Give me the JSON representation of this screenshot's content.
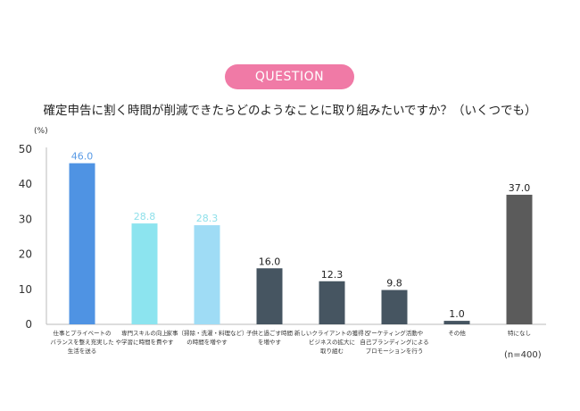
{
  "header": {
    "badge": "QUESTION",
    "question": "確定申告に割く時間が削減できたらどのようなことに取り組みたいですか？（いくつでも）",
    "sample_size": "(n=400)"
  },
  "chart_data": {
    "type": "bar",
    "title": "",
    "xlabel": "",
    "ylabel": "(%)",
    "ylim": [
      0,
      50
    ],
    "yticks": [
      0,
      10,
      20,
      30,
      40,
      50
    ],
    "grid": false,
    "legend": "none",
    "categories": [
      [
        "仕事とプライベートの",
        "バランスを整え充実した",
        "生活を送る"
      ],
      [
        "専門スキルの向上",
        "や学習に時間を費やす"
      ],
      [
        "家事（掃除・洗濯・料理など）",
        "の時間を増やす"
      ],
      [
        "子供と過ごす時間",
        "を増やす"
      ],
      [
        "新しいクライアントの獲得と",
        "ビジネスの拡大に",
        "取り組む"
      ],
      [
        "マーケティング活動や",
        "自己ブランディングによる",
        "プロモーションを行う"
      ],
      [
        "その他"
      ],
      [
        "特になし"
      ]
    ],
    "values": [
      46.0,
      28.8,
      28.3,
      16.0,
      12.3,
      9.8,
      1.0,
      37.0
    ],
    "value_labels": [
      "46.0",
      "28.8",
      "28.3",
      "16.0",
      "12.3",
      "9.8",
      "1.0",
      "37.0"
    ],
    "colors": [
      "#4f93e3",
      "#8ce4ef",
      "#9fdcf5",
      "#465561",
      "#465561",
      "#465561",
      "#465561",
      "#5b5b5b"
    ],
    "label_colors": [
      "#5a9be6",
      "#8ee0ea",
      "#8ee0ea",
      "#222222",
      "#222222",
      "#222222",
      "#222222",
      "#222222"
    ]
  }
}
